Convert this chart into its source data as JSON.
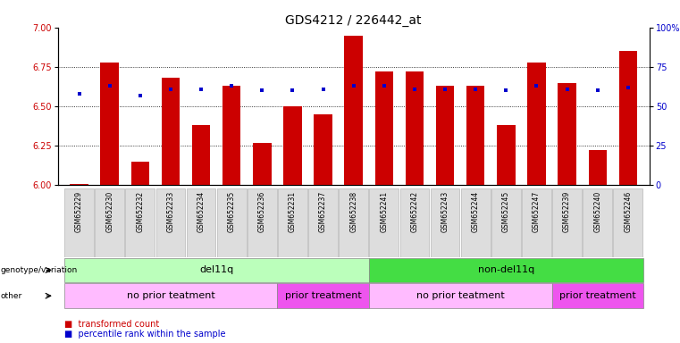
{
  "title": "GDS4212 / 226442_at",
  "samples": [
    "GSM652229",
    "GSM652230",
    "GSM652232",
    "GSM652233",
    "GSM652234",
    "GSM652235",
    "GSM652236",
    "GSM652231",
    "GSM652237",
    "GSM652238",
    "GSM652241",
    "GSM652242",
    "GSM652243",
    "GSM652244",
    "GSM652245",
    "GSM652247",
    "GSM652239",
    "GSM652240",
    "GSM652246"
  ],
  "red_values": [
    6.01,
    6.78,
    6.15,
    6.68,
    6.38,
    6.63,
    6.27,
    6.5,
    6.45,
    6.95,
    6.72,
    6.72,
    6.63,
    6.63,
    6.38,
    6.78,
    6.65,
    6.22,
    6.85
  ],
  "blue_values": [
    6.58,
    6.63,
    6.57,
    6.61,
    6.61,
    6.63,
    6.6,
    6.6,
    6.61,
    6.63,
    6.63,
    6.61,
    6.61,
    6.61,
    6.6,
    6.63,
    6.61,
    6.6,
    6.62
  ],
  "ylim_left": [
    6.0,
    7.0
  ],
  "yticks_left": [
    6.0,
    6.25,
    6.5,
    6.75,
    7.0
  ],
  "yticks_right_vals": [
    0,
    25,
    50,
    75,
    100
  ],
  "bar_color": "#cc0000",
  "dot_color": "#0000cc",
  "genotype_groups": [
    {
      "label": "del11q",
      "start": 0,
      "end": 9,
      "color": "#bbffbb"
    },
    {
      "label": "non-del11q",
      "start": 10,
      "end": 18,
      "color": "#44dd44"
    }
  ],
  "other_groups": [
    {
      "label": "no prior teatment",
      "start": 0,
      "end": 6,
      "color": "#ffbbff"
    },
    {
      "label": "prior treatment",
      "start": 7,
      "end": 9,
      "color": "#ee55ee"
    },
    {
      "label": "no prior teatment",
      "start": 10,
      "end": 15,
      "color": "#ffbbff"
    },
    {
      "label": "prior treatment",
      "start": 16,
      "end": 18,
      "color": "#ee55ee"
    }
  ],
  "title_fontsize": 10,
  "tick_fontsize": 7,
  "bar_width": 0.6,
  "xlim": [
    -0.7,
    18.7
  ]
}
